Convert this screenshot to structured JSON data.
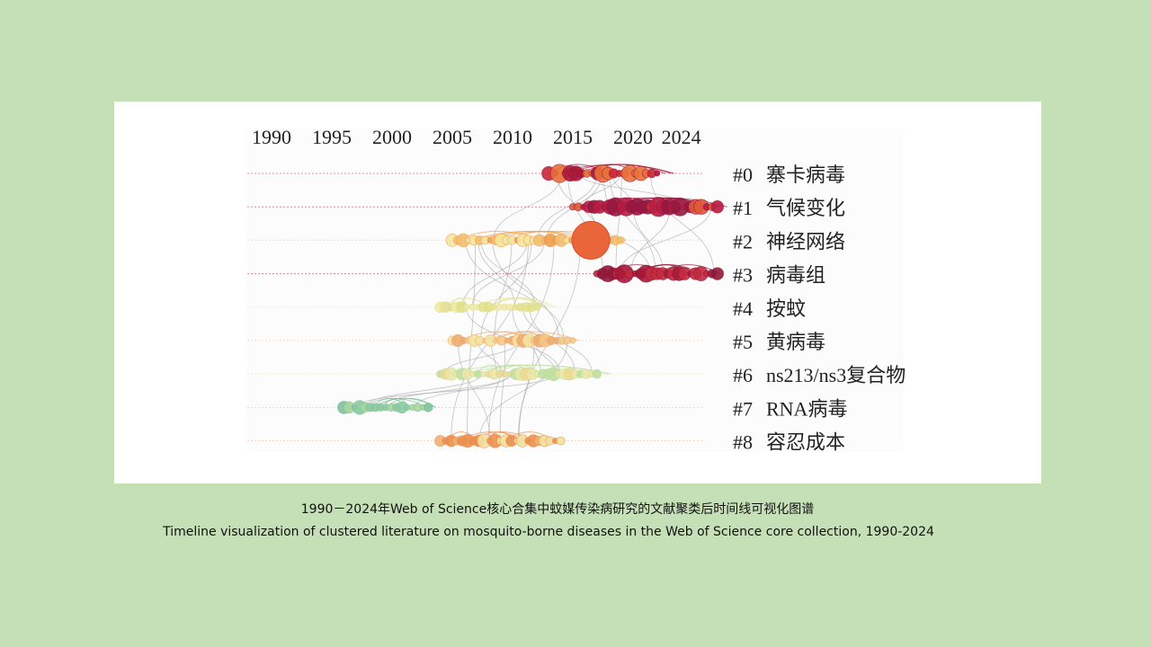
{
  "figure": {
    "years": [
      "1990",
      "1995",
      "2000",
      "2005",
      "2010",
      "2015",
      "2020",
      "2024"
    ],
    "clusters": [
      {
        "id": "#0",
        "label": "寨卡病毒",
        "span": [
          2013,
          2022
        ],
        "colors": [
          "#e8703a",
          "#c8283a",
          "#a81838"
        ]
      },
      {
        "id": "#1",
        "label": "气候变化",
        "span": [
          2015,
          2027
        ],
        "colors": [
          "#e0583a",
          "#b81c40",
          "#961840"
        ]
      },
      {
        "id": "#2",
        "label": "神经网络",
        "span": [
          2005,
          2019
        ],
        "colors": [
          "#f5e6a0",
          "#f2c070",
          "#eea050"
        ]
      },
      {
        "id": "#3",
        "label": "病毒组",
        "span": [
          2017,
          2027
        ],
        "colors": [
          "#c42a3e",
          "#a81838",
          "#901838"
        ]
      },
      {
        "id": "#4",
        "label": "按蚊",
        "span": [
          2004,
          2012
        ],
        "colors": [
          "#f0eaa8",
          "#e8e09a",
          "#dfe28a"
        ]
      },
      {
        "id": "#5",
        "label": "黄病毒",
        "span": [
          2005,
          2015
        ],
        "colors": [
          "#f5e4a0",
          "#f3c888",
          "#efac70"
        ]
      },
      {
        "id": "#6",
        "label": "ns213/ns3复合物",
        "span": [
          2004,
          2017
        ],
        "colors": [
          "#eee6a8",
          "#f1d890",
          "#bfe0a0"
        ]
      },
      {
        "id": "#7",
        "label": "RNA病毒",
        "span": [
          1996,
          2003
        ],
        "colors": [
          "#8ccaa0",
          "#a8d6a0",
          "#7fc29a"
        ]
      },
      {
        "id": "#8",
        "label": "容忍成本",
        "span": [
          2004,
          2014
        ],
        "colors": [
          "#f2e2a0",
          "#f2b070",
          "#ec9050"
        ]
      }
    ]
  },
  "caption": {
    "zh": "1990－2024年Web  of Science核心合集中蚊媒传染病研究的文献聚类后时间线可视化图谱",
    "en": "Timeline visualization of clustered literature on mosquito-borne diseases in the Web of Science core collection,  1990-2024"
  }
}
